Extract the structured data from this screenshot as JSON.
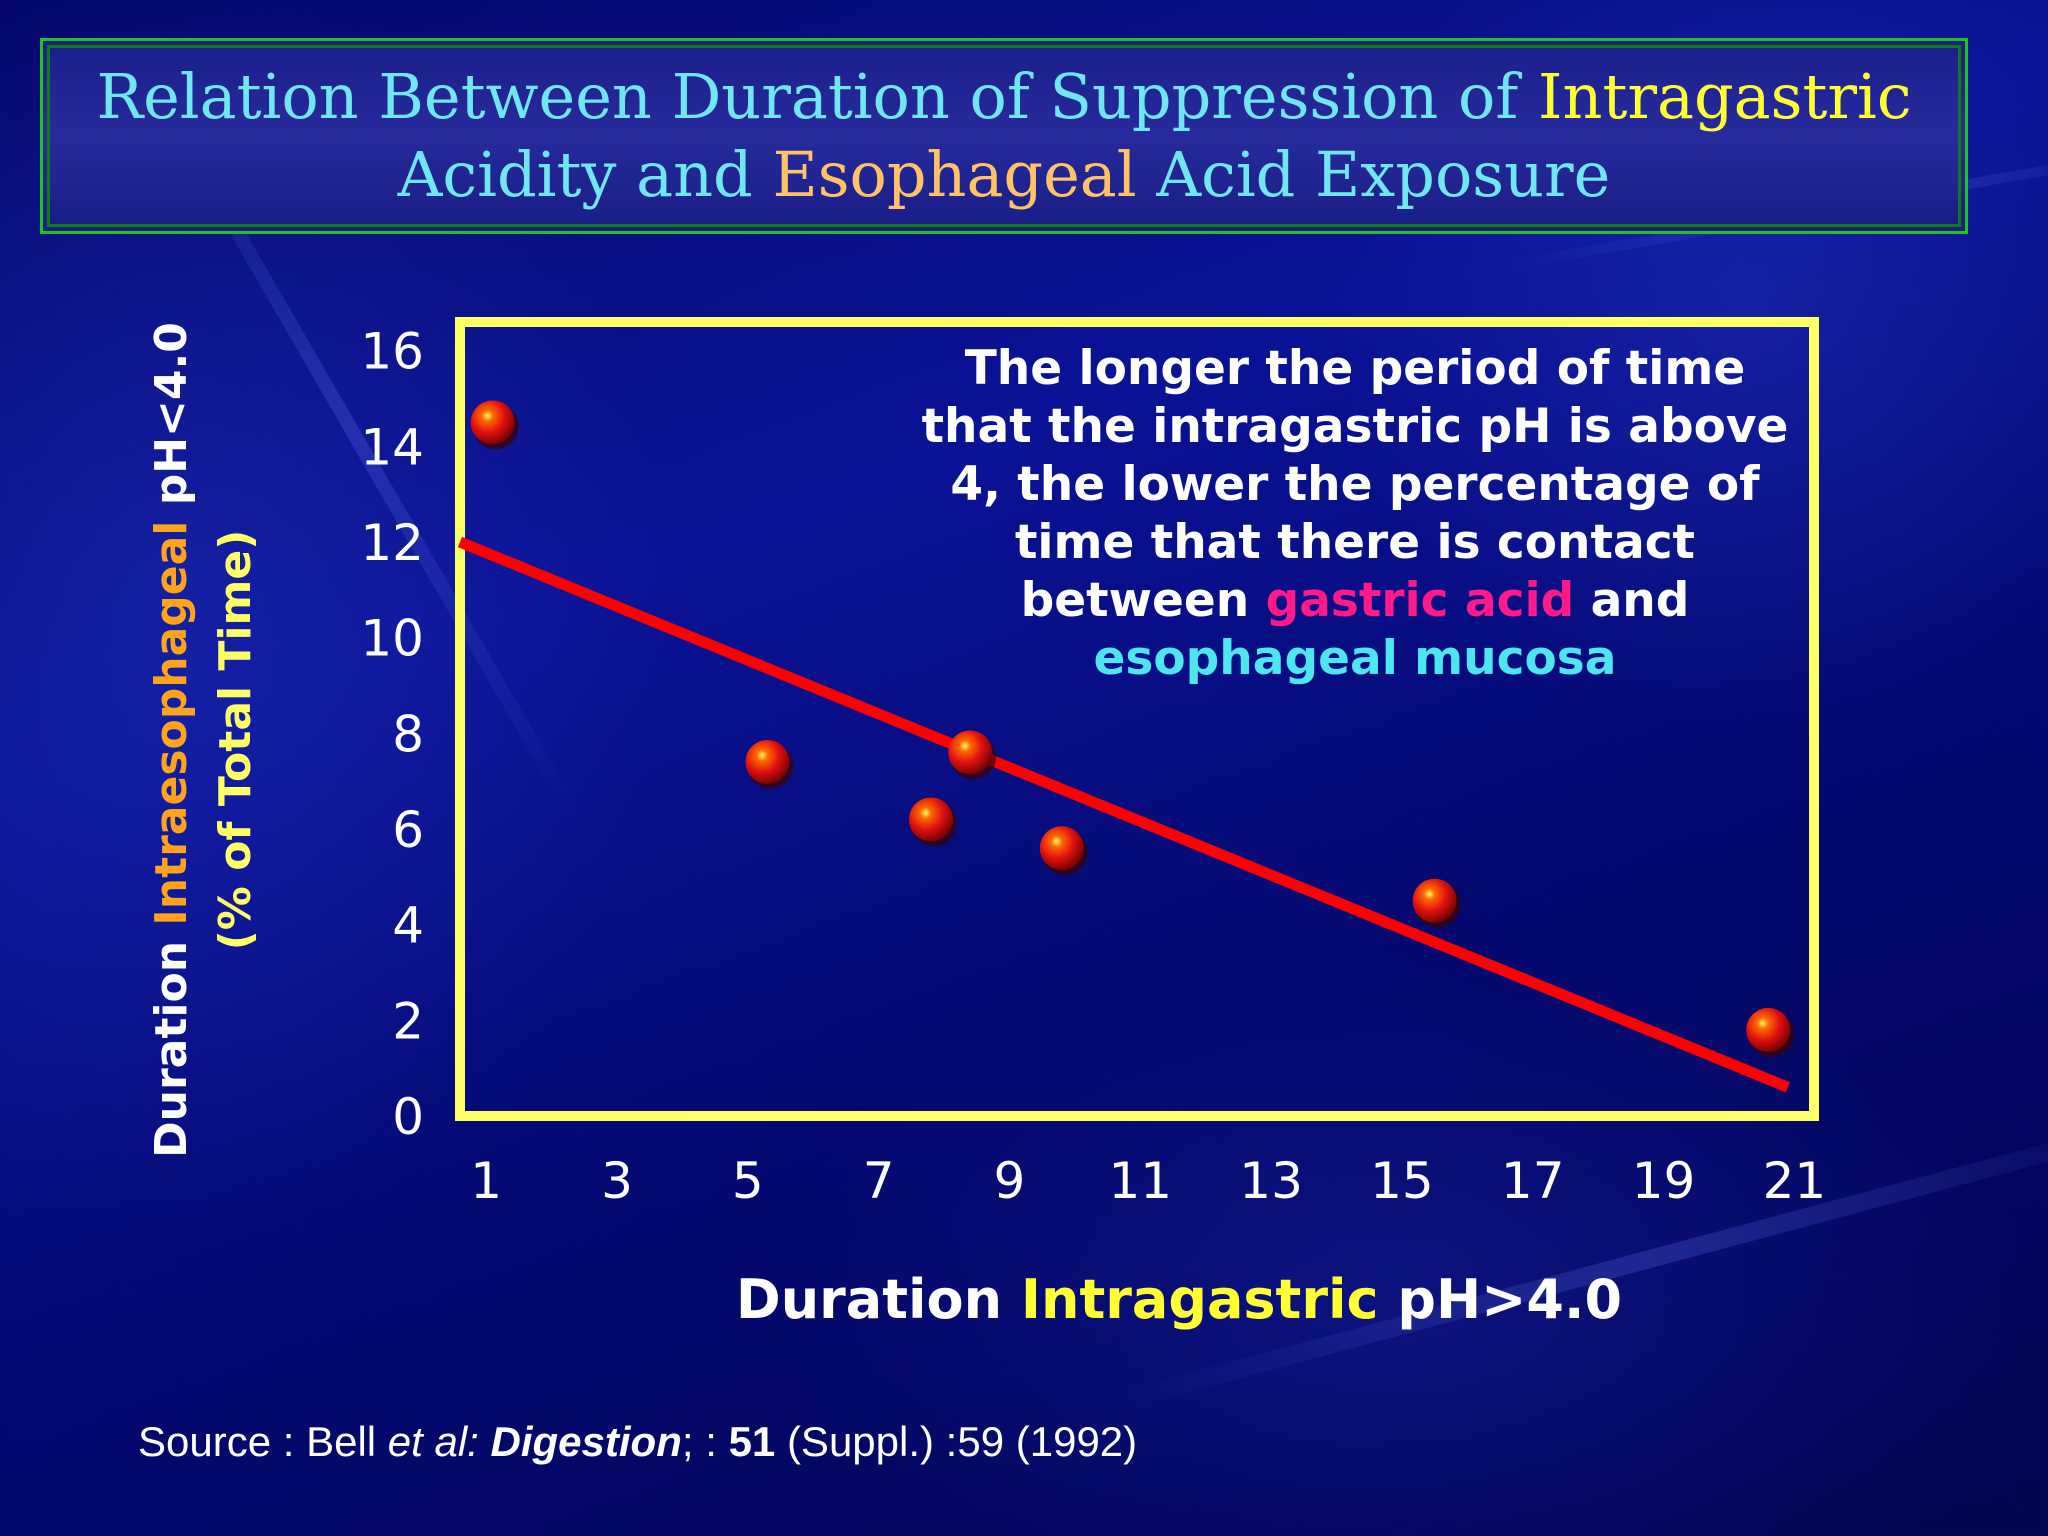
{
  "title": {
    "line1_a": "Relation Between Duration of Suppression of ",
    "line1_b": "Intragastric",
    "line2_a": "Acidity and ",
    "line2_b": "Esophageal",
    "line2_c": " Acid Exposure"
  },
  "annotation": {
    "line1": "The longer the period of time",
    "line2": "that the intragastric pH is above",
    "line3": "4, the lower the percentage of",
    "line4": "time that there is contact",
    "line5_a": "between ",
    "line5_b": "gastric acid",
    "line5_c": " and",
    "line6": "esophageal mucosa"
  },
  "source": {
    "prefix": "Source : Bell ",
    "etal": "et al: ",
    "journal": "Digestion",
    "mid": "; : ",
    "volume": "51",
    "suffix": " (Suppl.) :59 (1992)"
  },
  "colors": {
    "axis_box": "#ffff66",
    "fit_line": "#ff0000",
    "point": "#e01010",
    "title_border": "#1ec31e"
  },
  "chart_data": {
    "type": "scatter",
    "title": "Relation Between Duration of Suppression of Intragastric Acidity and Esophageal Acid Exposure",
    "xlabel_parts": [
      "Duration ",
      "Intragastric",
      " pH>4.0"
    ],
    "ylabel_parts": [
      "Duration ",
      "Intraesophageal",
      " pH<4.0"
    ],
    "ylabel_line2": "(% of Total Time)",
    "x_ticks": [
      1,
      3,
      5,
      7,
      9,
      11,
      13,
      15,
      17,
      19,
      21
    ],
    "y_ticks": [
      0,
      2,
      4,
      6,
      8,
      10,
      12,
      14,
      16
    ],
    "xlim": [
      0.6,
      21.3
    ],
    "ylim": [
      0,
      16.6
    ],
    "grid": false,
    "points": [
      {
        "x": 1.1,
        "y": 14.5
      },
      {
        "x": 5.3,
        "y": 7.4
      },
      {
        "x": 7.8,
        "y": 6.2
      },
      {
        "x": 8.4,
        "y": 7.6
      },
      {
        "x": 9.8,
        "y": 5.6
      },
      {
        "x": 15.5,
        "y": 4.5
      },
      {
        "x": 20.6,
        "y": 1.8
      }
    ],
    "trend_line": [
      {
        "x": 0.6,
        "y": 12.0
      },
      {
        "x": 20.9,
        "y": 0.6
      }
    ]
  }
}
